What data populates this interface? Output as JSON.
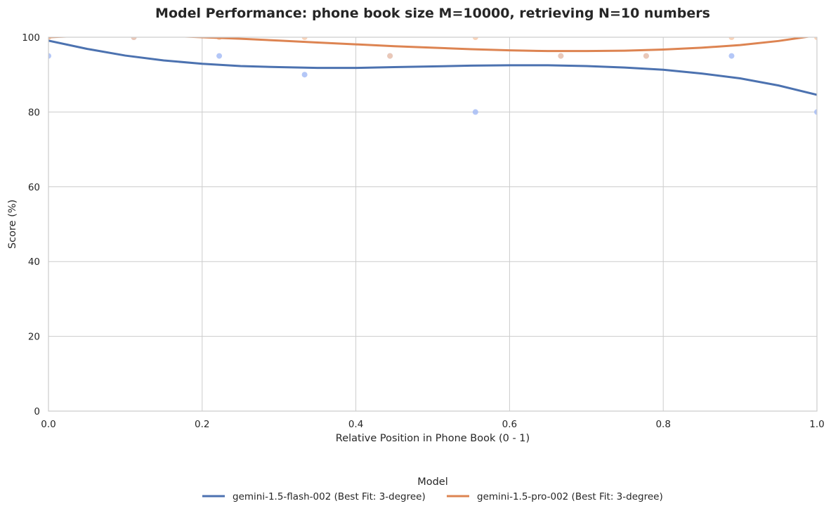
{
  "chart_data": {
    "type": "scatter",
    "title": "Model Performance: phone book size M=10000, retrieving N=10 numbers",
    "xlabel": "Relative Position in Phone Book (0 - 1)",
    "ylabel": "Score (%)",
    "xlim": [
      0,
      1
    ],
    "ylim": [
      0,
      100
    ],
    "xticks": [
      0,
      0.2,
      0.4,
      0.6,
      0.8,
      1
    ],
    "xtick_labels": [
      "0.0",
      "0.2",
      "0.4",
      "0.6",
      "0.8",
      "1.0"
    ],
    "yticks": [
      0,
      20,
      40,
      60,
      80,
      100
    ],
    "ytick_labels": [
      "0",
      "20",
      "40",
      "60",
      "80",
      "100"
    ],
    "grid": true,
    "legend": {
      "title": "Model",
      "placement": "bottom-center"
    },
    "series": [
      {
        "name": "gemini-1.5-flash-002 (Best Fit: 3-degree)",
        "line_color": "#4c72b0",
        "point_color": "#a1b9f5",
        "x": [
          0,
          0.1111,
          0.2222,
          0.3333,
          0.4444,
          0.5556,
          0.6667,
          0.7778,
          0.8889,
          1
        ],
        "y": [
          95,
          100,
          95,
          90,
          95,
          80,
          95,
          95,
          95,
          80
        ],
        "fit_x": [
          0,
          0.05,
          0.1,
          0.15,
          0.2,
          0.25,
          0.3,
          0.35,
          0.4,
          0.45,
          0.5,
          0.55,
          0.6,
          0.65,
          0.7,
          0.75,
          0.8,
          0.85,
          0.9,
          0.95,
          1
        ],
        "fit_y": [
          99.1,
          96.9,
          95.1,
          93.8,
          92.9,
          92.3,
          92.0,
          91.8,
          91.8,
          92.0,
          92.2,
          92.4,
          92.5,
          92.5,
          92.3,
          91.9,
          91.3,
          90.3,
          89.0,
          87.1,
          84.6
        ]
      },
      {
        "name": "gemini-1.5-pro-002 (Best Fit: 3-degree)",
        "line_color": "#dd8452",
        "point_color": "#f7c8a8",
        "x": [
          0,
          0.1111,
          0.2222,
          0.3333,
          0.4444,
          0.5556,
          0.6667,
          0.7778,
          0.8889,
          1
        ],
        "y": [
          100,
          100,
          100,
          100,
          95,
          100,
          95,
          95,
          100,
          100
        ],
        "fit_x": [
          0,
          0.05,
          0.1,
          0.15,
          0.2,
          0.25,
          0.3,
          0.35,
          0.4,
          0.45,
          0.5,
          0.55,
          0.6,
          0.65,
          0.7,
          0.75,
          0.8,
          0.85,
          0.9,
          0.95,
          1
        ],
        "fit_y": [
          100.0,
          100.4,
          100.5,
          100.4,
          100.0,
          99.6,
          99.1,
          98.6,
          98.1,
          97.6,
          97.2,
          96.8,
          96.5,
          96.3,
          96.3,
          96.4,
          96.7,
          97.2,
          97.9,
          99.0,
          100.5
        ]
      }
    ]
  }
}
